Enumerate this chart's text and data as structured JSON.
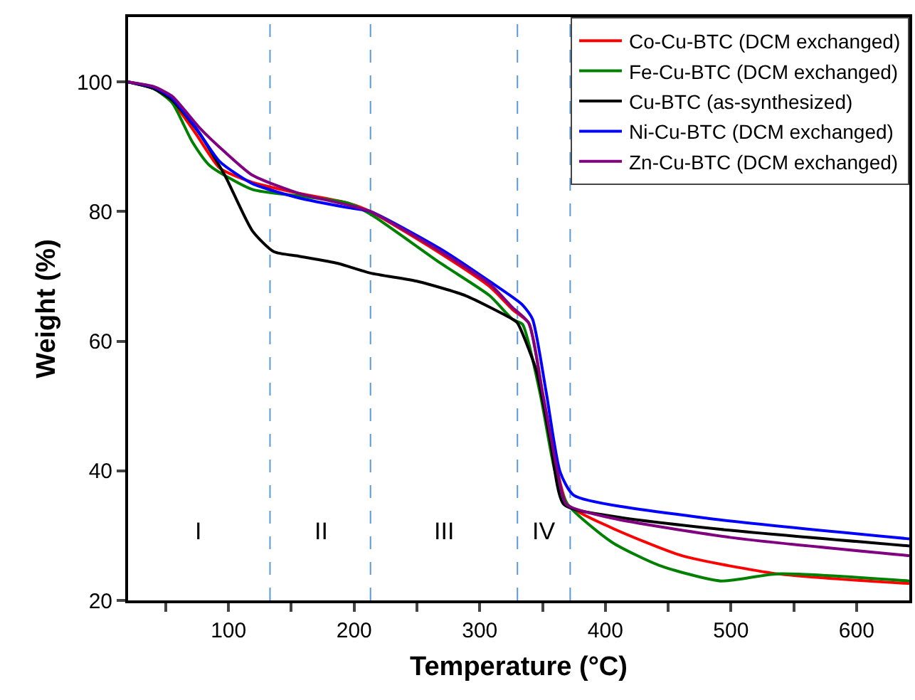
{
  "chart_data": {
    "type": "line",
    "xlabel": "Temperature (°C)",
    "ylabel": "Weight (%)",
    "xlim": [
      20,
      642
    ],
    "ylim": [
      20,
      110
    ],
    "xticks": [
      {
        "value": 50,
        "label": null
      },
      100,
      {
        "value": 150,
        "label": null
      },
      200,
      {
        "value": 250,
        "label": null
      },
      300,
      {
        "value": 350,
        "label": null
      },
      400,
      {
        "value": 450,
        "label": null
      },
      500,
      {
        "value": 550,
        "label": null
      },
      600
    ],
    "yticks": [
      20,
      40,
      60,
      80,
      100
    ],
    "grid": false,
    "legend": "top right",
    "line_style": "solid",
    "marker": "none",
    "ref_lines": [
      {
        "axis": "x",
        "value": 133,
        "color": "#5b9bd5",
        "line_style": "dashed"
      },
      {
        "axis": "x",
        "value": 213,
        "color": "#5b9bd5",
        "line_style": "dashed"
      },
      {
        "axis": "x",
        "value": 330,
        "color": "#5b9bd5",
        "line_style": "dashed"
      },
      {
        "axis": "x",
        "value": 372,
        "color": "#5b9bd5",
        "line_style": "dashed"
      }
    ],
    "annotations": [
      "I",
      "II",
      "III",
      "IV"
    ],
    "series": [
      {
        "name": "Co-Cu-BTC (DCM exchanged)",
        "color": "#ff0000",
        "x": [
          20,
          40,
          55,
          74,
          93,
          119,
          156,
          195,
          213,
          269,
          308,
          326,
          339,
          350,
          362,
          370,
          405,
          461,
          537,
          642
        ],
        "values": [
          100,
          99,
          97,
          92,
          86.7,
          84.5,
          82.8,
          81.3,
          80,
          73.5,
          68.4,
          64.9,
          62.8,
          52,
          39.8,
          34.8,
          31.2,
          26.9,
          24.1,
          22.6
        ]
      },
      {
        "name": "Fe-Cu-BTC (DCM exchanged)",
        "color": "#008000",
        "x": [
          20,
          40,
          55,
          71,
          85,
          119,
          156,
          195,
          213,
          269,
          308,
          326,
          334,
          348,
          360,
          370,
          405,
          443,
          492,
          537,
          642
        ],
        "values": [
          100,
          99,
          96.8,
          90.8,
          87.1,
          83.4,
          82.4,
          81.3,
          79.6,
          72,
          67,
          63.4,
          62.6,
          52,
          39.8,
          34.8,
          29,
          25.4,
          23,
          24.1,
          23
        ]
      },
      {
        "name": "Cu-BTC (as-synthesized)",
        "color": "#000000",
        "x": [
          20,
          40,
          55,
          77,
          97,
          119,
          136,
          156,
          187,
          213,
          251,
          289,
          326,
          330,
          345,
          356,
          367,
          405,
          500,
          642
        ],
        "values": [
          100,
          99,
          97.2,
          92,
          85.6,
          77,
          73.8,
          73.1,
          72,
          70.5,
          69.2,
          67,
          63.4,
          62.8,
          55.5,
          44.8,
          34.8,
          33,
          30.8,
          28.4
        ]
      },
      {
        "name": "Ni-Cu-BTC (DCM exchanged)",
        "color": "#0000ff",
        "x": [
          20,
          40,
          55,
          74,
          93,
          119,
          156,
          195,
          213,
          269,
          308,
          334,
          342,
          353,
          364,
          375,
          480,
          642
        ],
        "values": [
          100,
          99.2,
          97.5,
          92.9,
          87.7,
          84.3,
          82.1,
          80.6,
          80,
          74.2,
          69.2,
          65.6,
          63.4,
          52,
          39.8,
          36.2,
          32.7,
          29.5
        ]
      },
      {
        "name": "Zn-Cu-BTC (DCM exchanged)",
        "color": "#800080",
        "x": [
          20,
          40,
          55,
          77,
          97,
          119,
          156,
          195,
          213,
          269,
          308,
          326,
          339,
          350,
          362,
          369,
          405,
          500,
          642
        ],
        "values": [
          100,
          99.3,
          97.8,
          92.9,
          89.2,
          85.6,
          82.8,
          81,
          80,
          73.8,
          68.8,
          65.2,
          62.8,
          52,
          39.8,
          34.8,
          32.7,
          29.7,
          26.9
        ]
      }
    ]
  }
}
